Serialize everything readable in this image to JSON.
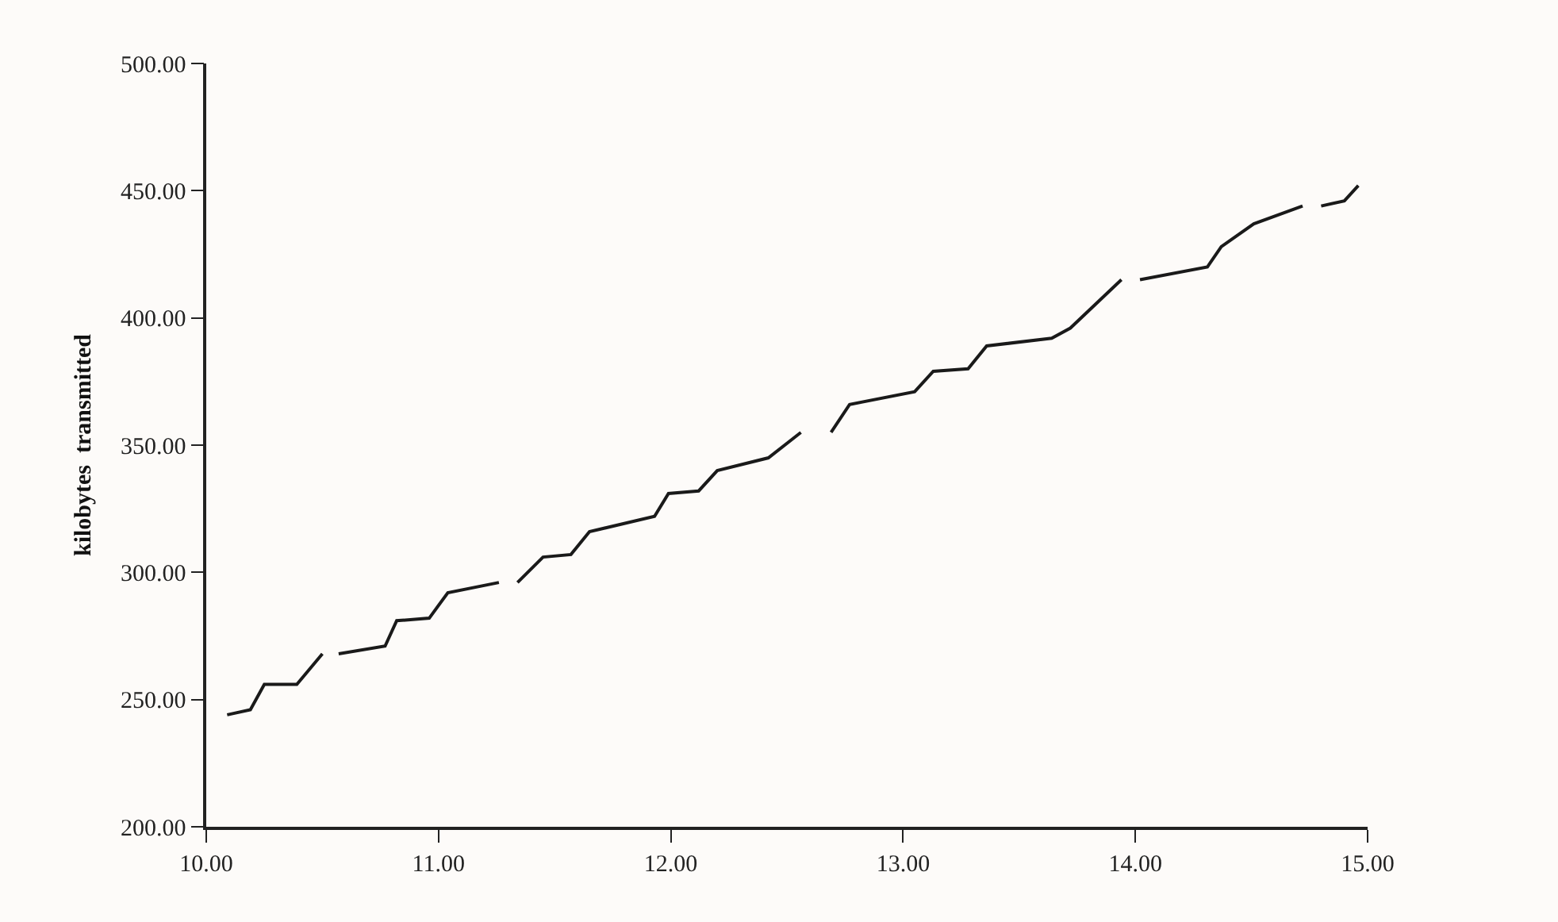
{
  "chart_data": {
    "type": "line",
    "ylabel": "kilobytes  transmitted",
    "x": [
      10.09,
      10.19,
      10.25,
      10.39,
      10.5,
      10.53,
      10.57,
      10.77,
      10.82,
      10.96,
      11.04,
      11.26,
      11.3,
      11.34,
      11.45,
      11.57,
      11.65,
      11.93,
      11.99,
      12.12,
      12.2,
      12.42,
      12.56,
      12.62,
      12.69,
      12.77,
      13.05,
      13.13,
      13.28,
      13.36,
      13.64,
      13.72,
      13.94,
      13.98,
      14.02,
      14.31,
      14.37,
      14.51,
      14.72,
      14.76,
      14.8,
      14.9,
      14.96
    ],
    "series": [
      {
        "color": "#1a1a1a",
        "values": [
          244,
          246,
          256,
          256,
          268,
          null,
          268,
          271,
          281,
          282,
          292,
          296,
          null,
          296,
          306,
          307,
          316,
          322,
          331,
          332,
          340,
          345,
          355,
          null,
          355,
          366,
          371,
          379,
          380,
          389,
          392,
          396,
          415,
          null,
          415,
          420,
          428,
          437,
          444,
          null,
          444,
          446,
          452
        ]
      }
    ],
    "xlim": [
      10,
      15
    ],
    "ylim": [
      200,
      500
    ],
    "xticks": [
      {
        "value": 10,
        "label": "10.00"
      },
      {
        "value": 11,
        "label": "11.00"
      },
      {
        "value": 12,
        "label": "12.00"
      },
      {
        "value": 13,
        "label": "13.00"
      },
      {
        "value": 14,
        "label": "14.00"
      },
      {
        "value": 15,
        "label": "15.00"
      }
    ],
    "yticks": [
      {
        "value": 200,
        "label": "200.00"
      },
      {
        "value": 250,
        "label": "250.00"
      },
      {
        "value": 300,
        "label": "300.00"
      },
      {
        "value": 350,
        "label": "350.00"
      },
      {
        "value": 400,
        "label": "400.00"
      },
      {
        "value": 450,
        "label": "450.00"
      },
      {
        "value": 500,
        "label": "500.00"
      }
    ],
    "grid": false,
    "marker": "none",
    "line_style": "solid"
  }
}
